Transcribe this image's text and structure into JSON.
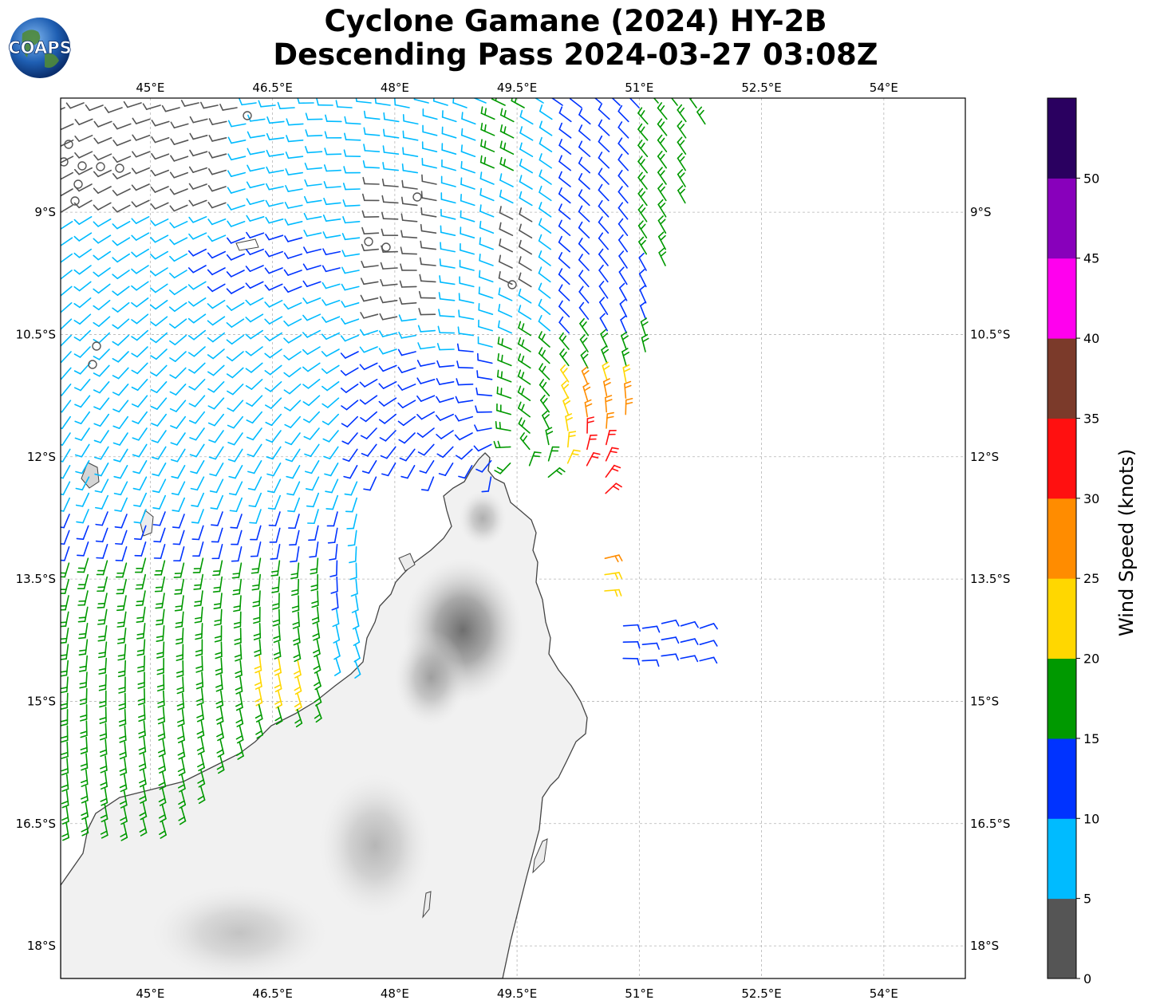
{
  "title": {
    "line1": "Cyclone Gamane (2024) HY-2B",
    "line2": "Descending Pass 2024-03-27 03:08Z"
  },
  "logo": {
    "text": "COAPS"
  },
  "map": {
    "lon_range": [
      43.9,
      55.0
    ],
    "lat_range": [
      -18.4,
      -7.6
    ],
    "lon_ticks": [
      "45°E",
      "46.5°E",
      "48°E",
      "49.5°E",
      "51°E",
      "52.5°E",
      "54°E"
    ],
    "lon_tick_values": [
      45,
      46.5,
      48,
      49.5,
      51,
      52.5,
      54
    ],
    "lat_ticks": [
      "9°S",
      "10.5°S",
      "12°S",
      "13.5°S",
      "15°S",
      "16.5°S",
      "18°S"
    ],
    "lat_tick_values": [
      -9,
      -10.5,
      -12,
      -13.5,
      -15,
      -16.5,
      -18
    ],
    "grid": true,
    "land": "Madagascar (north), shaded terrain"
  },
  "colorbar": {
    "label": "Wind Speed (knots)",
    "tick_labels": [
      "0",
      "5",
      "10",
      "15",
      "20",
      "25",
      "30",
      "35",
      "40",
      "45",
      "50"
    ],
    "colors": [
      "#555555",
      "#00bbff",
      "#0033ff",
      "#009900",
      "#ffd700",
      "#ff8c00",
      "#ff1010",
      "#7b3a2a",
      "#ff00ee",
      "#8800bb",
      "#2a0060"
    ]
  },
  "wind_regions": [
    {
      "name": "calm-west",
      "color": "#555555"
    },
    {
      "name": "light-north",
      "color": "#00bbff"
    },
    {
      "name": "moderate-arc",
      "color": "#0033ff"
    },
    {
      "name": "fresh-southwest",
      "color": "#009900"
    },
    {
      "name": "strong-east",
      "color": "#ffd700"
    },
    {
      "name": "gale-east",
      "color": "#ff8c00"
    },
    {
      "name": "storm-core",
      "color": "#ff1010"
    }
  ]
}
